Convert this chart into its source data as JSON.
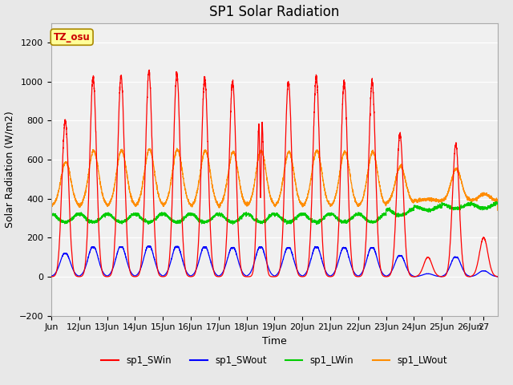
{
  "title": "SP1 Solar Radiation",
  "ylabel": "Solar Radiation (W/m2)",
  "xlabel": "Time",
  "ylim": [
    -200,
    1300
  ],
  "yticks": [
    -200,
    0,
    200,
    400,
    600,
    800,
    1000,
    1200
  ],
  "xtick_labels": [
    "Jun",
    "12Jun",
    "13Jun",
    "14Jun",
    "15Jun",
    "16Jun",
    "17Jun",
    "18Jun",
    "19Jun",
    "20Jun",
    "21Jun",
    "22Jun",
    "23Jun",
    "24Jun",
    "25Jun",
    "26Jun",
    "27"
  ],
  "xtick_positions": [
    0,
    1,
    2,
    3,
    4,
    5,
    6,
    7,
    8,
    9,
    10,
    11,
    12,
    13,
    14,
    15,
    15.5
  ],
  "colors": {
    "sp1_SWin": "#FF0000",
    "sp1_SWout": "#0000FF",
    "sp1_LWin": "#00CC00",
    "sp1_LWout": "#FF8C00"
  },
  "tz_label": "TZ_osu",
  "title_fontsize": 12,
  "label_fontsize": 9,
  "tick_fontsize": 8
}
